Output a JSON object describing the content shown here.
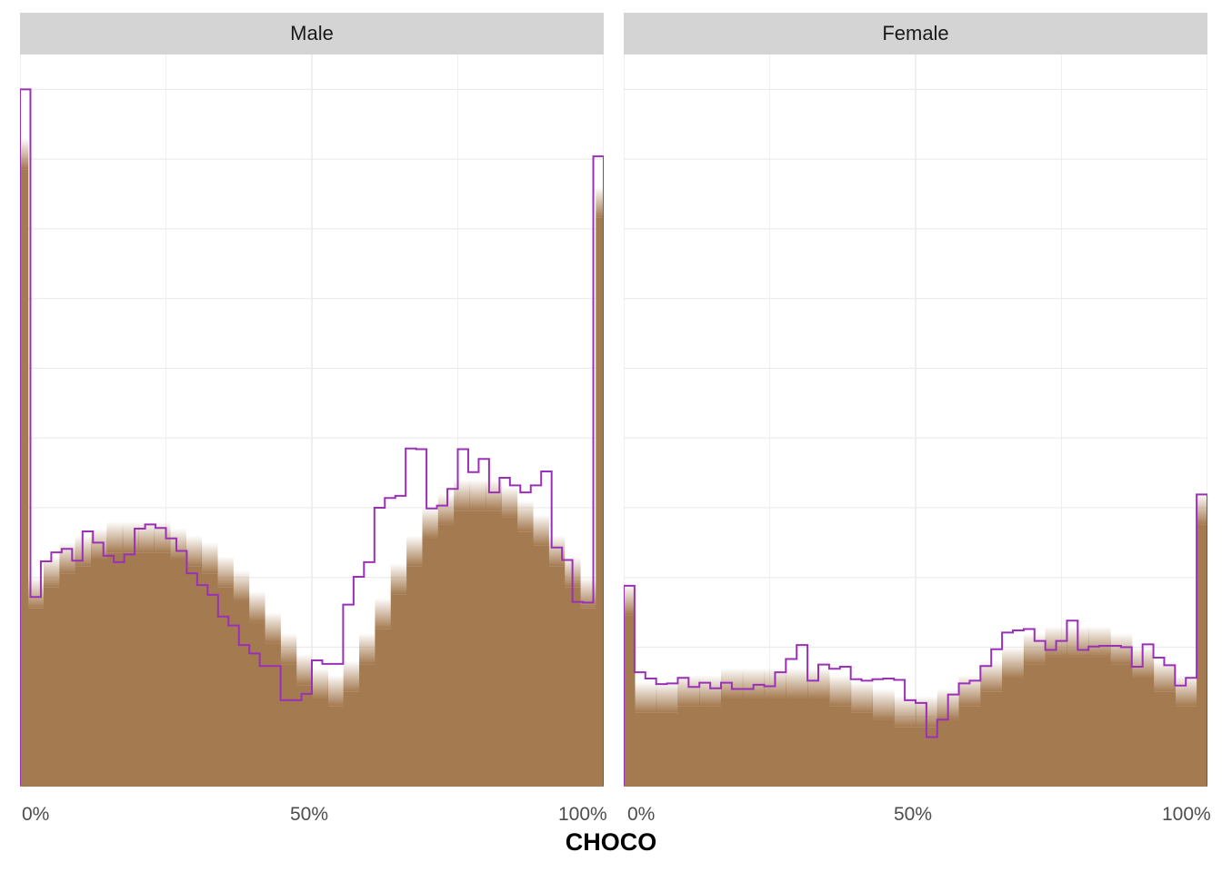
{
  "chart_data": {
    "type": "histogram",
    "xlabel": "CHOCO",
    "ylabel": "",
    "x_tick_labels": [
      "0%",
      "50%",
      "100%"
    ],
    "xlim": [
      0,
      100
    ],
    "grid": true,
    "legend": "none",
    "colors": {
      "observed_outline": "#9b30b8",
      "simulated_fill": "#a47a50",
      "strip_background": "#d4d4d4",
      "gridline": "#ebebeb"
    },
    "bin_width_percent": 2,
    "ylim": [
      0,
      1.05
    ],
    "panels": [
      {
        "label": "Male",
        "observed_density": [
          1.0,
          0.272,
          0.323,
          0.336,
          0.341,
          0.324,
          0.366,
          0.35,
          0.331,
          0.322,
          0.333,
          0.37,
          0.376,
          0.371,
          0.356,
          0.338,
          0.306,
          0.289,
          0.275,
          0.244,
          0.231,
          0.203,
          0.191,
          0.173,
          0.173,
          0.124,
          0.124,
          0.133,
          0.181,
          0.176,
          0.176,
          0.261,
          0.301,
          0.322,
          0.4,
          0.414,
          0.417,
          0.485,
          0.484,
          0.399,
          0.403,
          0.427,
          0.484,
          0.451,
          0.47,
          0.422,
          0.443,
          0.432,
          0.422,
          0.432,
          0.452,
          0.343,
          0.325,
          0.265,
          0.264,
          0.904
        ],
        "simulated_band_top": [
          0.93,
          0.3,
          0.33,
          0.35,
          0.36,
          0.37,
          0.38,
          0.38,
          0.38,
          0.38,
          0.37,
          0.36,
          0.35,
          0.33,
          0.31,
          0.28,
          0.25,
          0.22,
          0.19,
          0.17,
          0.16,
          0.18,
          0.22,
          0.27,
          0.32,
          0.36,
          0.4,
          0.42,
          0.44,
          0.44,
          0.44,
          0.43,
          0.41,
          0.39,
          0.36,
          0.33,
          0.3,
          0.86
        ]
      },
      {
        "label": "Female",
        "observed_density": [
          0.288,
          0.164,
          0.155,
          0.147,
          0.148,
          0.156,
          0.143,
          0.149,
          0.141,
          0.149,
          0.14,
          0.14,
          0.146,
          0.144,
          0.164,
          0.183,
          0.203,
          0.152,
          0.175,
          0.169,
          0.172,
          0.154,
          0.152,
          0.154,
          0.155,
          0.153,
          0.124,
          0.12,
          0.071,
          0.096,
          0.132,
          0.148,
          0.152,
          0.173,
          0.197,
          0.221,
          0.224,
          0.226,
          0.209,
          0.196,
          0.209,
          0.238,
          0.196,
          0.201,
          0.202,
          0.202,
          0.2,
          0.172,
          0.204,
          0.185,
          0.174,
          0.145,
          0.156,
          0.419
        ],
        "simulated_band_top": [
          0.29,
          0.15,
          0.15,
          0.16,
          0.16,
          0.17,
          0.17,
          0.17,
          0.17,
          0.17,
          0.16,
          0.15,
          0.14,
          0.13,
          0.13,
          0.14,
          0.16,
          0.18,
          0.2,
          0.22,
          0.23,
          0.23,
          0.23,
          0.22,
          0.2,
          0.18,
          0.16,
          0.42
        ]
      }
    ]
  }
}
